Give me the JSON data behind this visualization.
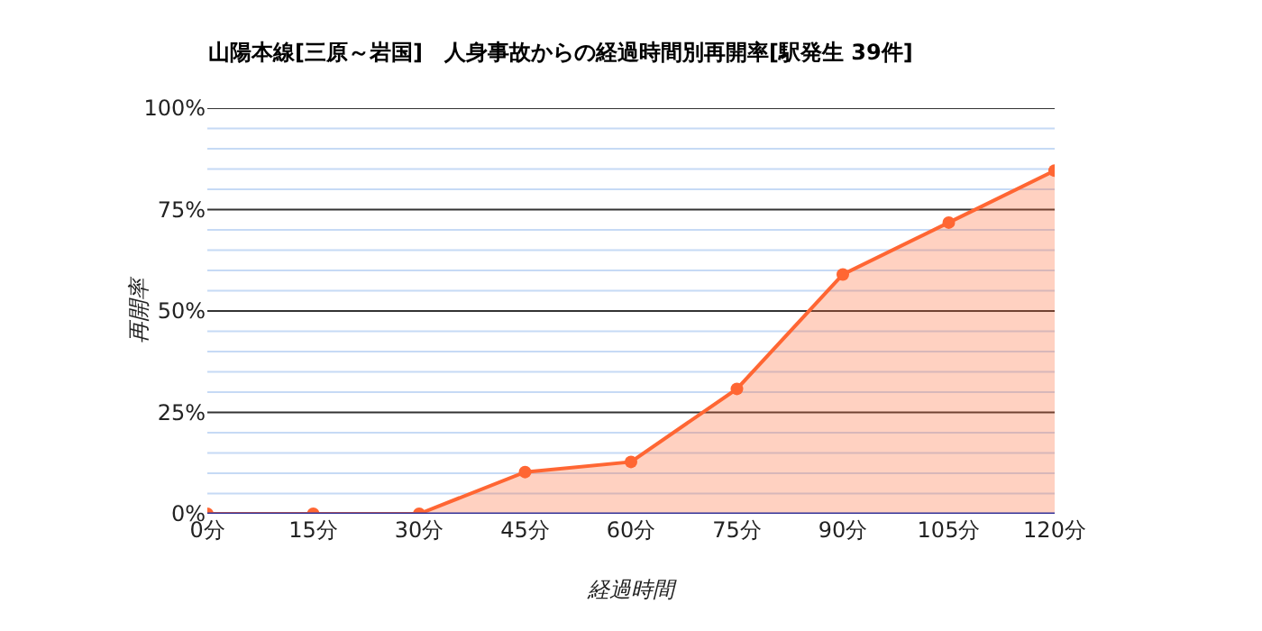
{
  "chart_data": {
    "type": "area",
    "title": "山陽本線[三原～岩国]　人身事故からの経過時間別再開率[駅発生 39件]",
    "xlabel": "経過時間",
    "ylabel": "再開率",
    "categories": [
      "0分",
      "15分",
      "30分",
      "45分",
      "60分",
      "75分",
      "90分",
      "105分",
      "120分"
    ],
    "series": [
      {
        "color": "#ff6633",
        "values": [
          0,
          0,
          0,
          10.3,
          12.8,
          30.8,
          59.0,
          71.8,
          84.6
        ]
      }
    ],
    "ylim": [
      0,
      100
    ],
    "yticks": [
      {
        "value": 0,
        "label": "0%"
      },
      {
        "value": 5,
        "label": null
      },
      {
        "value": 10,
        "label": null
      },
      {
        "value": 15,
        "label": null
      },
      {
        "value": 20,
        "label": null
      },
      {
        "value": 25,
        "label": "25%"
      },
      {
        "value": 30,
        "label": null
      },
      {
        "value": 35,
        "label": null
      },
      {
        "value": 40,
        "label": null
      },
      {
        "value": 45,
        "label": null
      },
      {
        "value": 50,
        "label": "50%"
      },
      {
        "value": 55,
        "label": null
      },
      {
        "value": 60,
        "label": null
      },
      {
        "value": 65,
        "label": null
      },
      {
        "value": 70,
        "label": null
      },
      {
        "value": 75,
        "label": "75%"
      },
      {
        "value": 80,
        "label": null
      },
      {
        "value": 85,
        "label": null
      },
      {
        "value": 90,
        "label": null
      },
      {
        "value": 95,
        "label": null
      },
      {
        "value": 100,
        "label": "100%"
      }
    ],
    "grid": "y",
    "marker": "circle",
    "line_style": "solid"
  }
}
